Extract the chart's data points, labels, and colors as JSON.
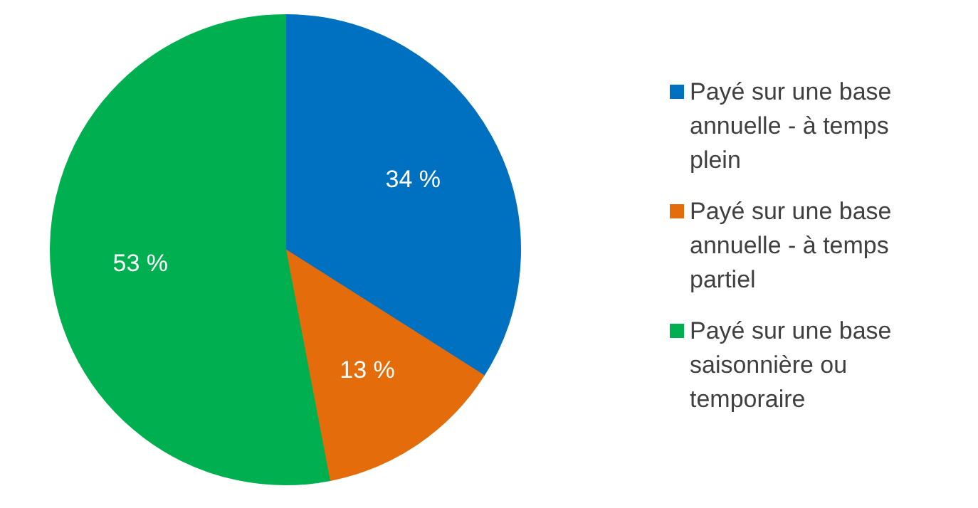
{
  "chart_data": {
    "type": "pie",
    "categories": [
      "Payé sur une base annuelle - à temps plein",
      "Payé sur une base annuelle - à temps partiel",
      "Payé sur une base saisonnière ou temporaire"
    ],
    "values": [
      34,
      13,
      53
    ],
    "colors": [
      "#0070c0",
      "#e46c0a",
      "#00b050"
    ],
    "value_labels": [
      "34 %",
      "13 %",
      "53 %"
    ],
    "legend": "right"
  }
}
